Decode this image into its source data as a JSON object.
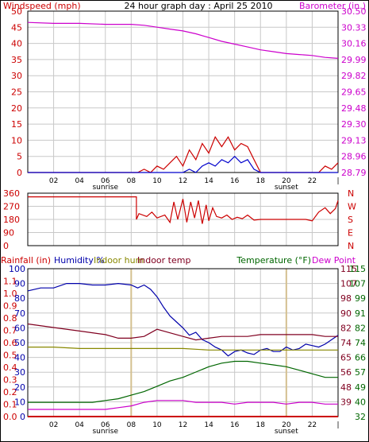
{
  "colors": {
    "wind": "#cc0000",
    "gust": "#0000cc",
    "baro": "#cc00cc",
    "humidity": "#0000aa",
    "indoor_hum": "#888800",
    "indoor_temp": "#800020",
    "temperature": "#006600",
    "dewpoint": "#cc00cc",
    "rain": "#cc0000",
    "grid": "#c8c8c8",
    "frame": "#000000",
    "daylight_marker": "#cccccc"
  },
  "chart_data": [
    {
      "type": "line",
      "title": "24 hour graph day : April 25 2010",
      "ylabel": "Windspeed (mph)",
      "y2label": "Barometer (in.)",
      "x_ticks": [
        "02",
        "04",
        "06",
        "08",
        "10",
        "12",
        "14",
        "16",
        "18",
        "20",
        "22",
        "|"
      ],
      "x_annotations": [
        {
          "label": "sunrise",
          "hour": 6
        },
        {
          "label": "sunset",
          "hour": 20
        }
      ],
      "ylim": [
        0,
        50
      ],
      "y_ticks": [
        "0",
        "5",
        "10",
        "15",
        "20",
        "25",
        "30",
        "35",
        "40",
        "45",
        "50"
      ],
      "y2lim": [
        28.79,
        30.5
      ],
      "y2_ticks": [
        "28.79",
        "28.96",
        "29.13",
        "29.30",
        "29.48",
        "29.65",
        "29.82",
        "29.99",
        "30.16",
        "30.33",
        "30.50"
      ],
      "series": [
        {
          "name": "Barometer",
          "axis": "right",
          "x": [
            0,
            2,
            4,
            6,
            8,
            9,
            10,
            11,
            12,
            13,
            14,
            15,
            16,
            17,
            18,
            19,
            20,
            21,
            22,
            23,
            24
          ],
          "y": [
            30.38,
            30.37,
            30.37,
            30.36,
            30.36,
            30.35,
            30.33,
            30.31,
            30.29,
            30.26,
            30.22,
            30.18,
            30.15,
            30.12,
            30.09,
            30.07,
            30.05,
            30.04,
            30.03,
            30.01,
            30.0
          ]
        },
        {
          "name": "Wind gust",
          "axis": "left",
          "x": [
            0,
            8.5,
            9.0,
            9.5,
            10.0,
            10.5,
            11.0,
            11.5,
            12.0,
            12.5,
            13.0,
            13.5,
            14.0,
            14.5,
            15.0,
            15.5,
            16.0,
            16.5,
            17.0,
            17.5,
            18.0,
            22.5,
            23.0,
            23.5,
            24.0
          ],
          "y": [
            0,
            0,
            1,
            0,
            2,
            1,
            3,
            5,
            2,
            7,
            4,
            9,
            6,
            11,
            8,
            11,
            7,
            9,
            8,
            4,
            0,
            0,
            2,
            1,
            3
          ]
        },
        {
          "name": "Windspeed",
          "axis": "left",
          "x": [
            0,
            12.0,
            12.5,
            13.0,
            13.5,
            14.0,
            14.5,
            15.0,
            15.5,
            16.0,
            16.5,
            17.0,
            17.5,
            18.0,
            24.0
          ],
          "y": [
            0,
            0,
            1,
            0,
            2,
            3,
            2,
            4,
            3,
            5,
            3,
            4,
            1,
            0,
            0
          ]
        }
      ]
    },
    {
      "type": "line",
      "title": "",
      "x_ticks": [],
      "ylim": [
        0,
        360
      ],
      "y_ticks": [
        "360",
        "270",
        "180",
        "90",
        "0"
      ],
      "y2_ticks": [
        "N",
        "W",
        "S",
        "E",
        "N"
      ],
      "series": [
        {
          "name": "Wind direction",
          "x": [
            0,
            8.4,
            8.4,
            8.6,
            9.2,
            9.6,
            10.0,
            10.6,
            11.0,
            11.3,
            11.6,
            12.0,
            12.3,
            12.6,
            12.9,
            13.2,
            13.5,
            13.8,
            14.0,
            14.3,
            14.6,
            15.0,
            15.4,
            15.8,
            16.2,
            16.6,
            17.0,
            17.5,
            18.0,
            18.0,
            21.5,
            22.0,
            22.5,
            23.0,
            23.4,
            23.8,
            24.0
          ],
          "y": [
            335,
            335,
            180,
            220,
            200,
            230,
            190,
            210,
            160,
            300,
            180,
            320,
            160,
            300,
            190,
            310,
            150,
            280,
            170,
            260,
            200,
            190,
            210,
            180,
            195,
            185,
            210,
            175,
            180,
            180,
            180,
            170,
            230,
            260,
            220,
            255,
            310
          ]
        }
      ]
    },
    {
      "type": "line",
      "title": "",
      "labels": {
        "rain": "Rainfall (in)",
        "humidity": "Humidity %",
        "indoor_hum": "Indoor hum",
        "indoor_temp": "Indoor temp",
        "temperature": "Temperature (°F)",
        "dewpoint": "Dew Point"
      },
      "x_ticks": [
        "02",
        "04",
        "06",
        "08",
        "10",
        "12",
        "14",
        "16",
        "18",
        "20",
        "22",
        "|"
      ],
      "x_annotations": [
        {
          "label": "sunrise",
          "hour": 6
        },
        {
          "label": "sunset",
          "hour": 20
        }
      ],
      "rain_ylim": [
        0,
        1.2
      ],
      "rain_ticks": [
        "0.0",
        "0.1",
        "0.2",
        "0.3",
        "0.4",
        "0.5",
        "0.6",
        "0.7",
        "0.8",
        "0.9",
        "1.0",
        "1.1"
      ],
      "humidity_ylim": [
        0,
        100
      ],
      "humidity_ticks": [
        "0",
        "10",
        "20",
        "30",
        "40",
        "50",
        "60",
        "70",
        "80",
        "90",
        "100"
      ],
      "temp_ylim": [
        32,
        115
      ],
      "temp_ticks_inner": [
        "",
        "39",
        "48",
        "56",
        "65",
        "74",
        "82",
        "90",
        "98",
        "107",
        "115"
      ],
      "temp_ticks_outer": [
        "32",
        "40",
        "49",
        "57",
        "66",
        "74",
        "82",
        "91",
        "99",
        "107",
        "115"
      ],
      "series": [
        {
          "name": "Humidity",
          "axis": "humidity",
          "x": [
            0,
            1,
            2,
            3,
            4,
            5,
            6,
            7,
            8,
            8.5,
            9,
            9.5,
            10,
            10.5,
            11,
            11.5,
            12,
            12.5,
            13,
            13.5,
            14,
            14.5,
            15,
            15.5,
            16,
            16.5,
            17,
            17.5,
            18,
            18.5,
            19,
            19.5,
            20,
            20.5,
            21,
            21.5,
            22,
            22.5,
            23,
            23.5,
            24
          ],
          "y": [
            85,
            87,
            87,
            90,
            90,
            89,
            89,
            90,
            89,
            87,
            89,
            86,
            81,
            74,
            68,
            64,
            60,
            55,
            57,
            52,
            50,
            47,
            45,
            41,
            44,
            45,
            43,
            42,
            45,
            46,
            44,
            44,
            47,
            45,
            46,
            49,
            48,
            47,
            49,
            52,
            55
          ]
        },
        {
          "name": "Indoor hum",
          "axis": "humidity",
          "x": [
            0,
            2,
            4,
            6,
            8,
            10,
            12,
            14,
            16,
            18,
            20,
            22,
            24
          ],
          "y": [
            47,
            47,
            46,
            46,
            46,
            46,
            46,
            45,
            45,
            45,
            45,
            45,
            45
          ]
        },
        {
          "name": "Indoor temp",
          "axis": "temp",
          "x": [
            0,
            2,
            4,
            6,
            7,
            8,
            9,
            10,
            11,
            12,
            13,
            14,
            15,
            16,
            17,
            18,
            19,
            20,
            21,
            22,
            23,
            24
          ],
          "y": [
            84,
            82,
            80,
            78,
            76,
            76,
            77,
            81,
            79,
            77,
            75,
            76,
            77,
            77,
            77,
            78,
            78,
            78,
            78,
            78,
            77,
            77
          ]
        },
        {
          "name": "Temperature",
          "axis": "temp",
          "x": [
            0,
            1,
            2,
            3,
            4,
            5,
            6,
            7,
            8,
            9,
            10,
            11,
            12,
            13,
            14,
            15,
            16,
            17,
            18,
            19,
            20,
            21,
            22,
            23,
            24
          ],
          "y": [
            40,
            40,
            40,
            40,
            40,
            40,
            41,
            42,
            44,
            46,
            49,
            52,
            54,
            57,
            60,
            62,
            63,
            63,
            62,
            61,
            60,
            58,
            56,
            54,
            54
          ]
        },
        {
          "name": "Dew Point",
          "axis": "temp",
          "x": [
            0,
            1,
            2,
            3,
            4,
            5,
            6,
            7,
            8,
            9,
            10,
            11,
            12,
            13,
            14,
            15,
            16,
            17,
            18,
            19,
            20,
            21,
            22,
            23,
            24
          ],
          "y": [
            36,
            36,
            36,
            36,
            36,
            36,
            36,
            37,
            38,
            40,
            41,
            41,
            41,
            40,
            40,
            40,
            39,
            40,
            40,
            40,
            39,
            40,
            40,
            39,
            39
          ]
        },
        {
          "name": "Rainfall",
          "axis": "rain",
          "x": [
            0,
            24
          ],
          "y": [
            0,
            0
          ]
        }
      ]
    }
  ]
}
